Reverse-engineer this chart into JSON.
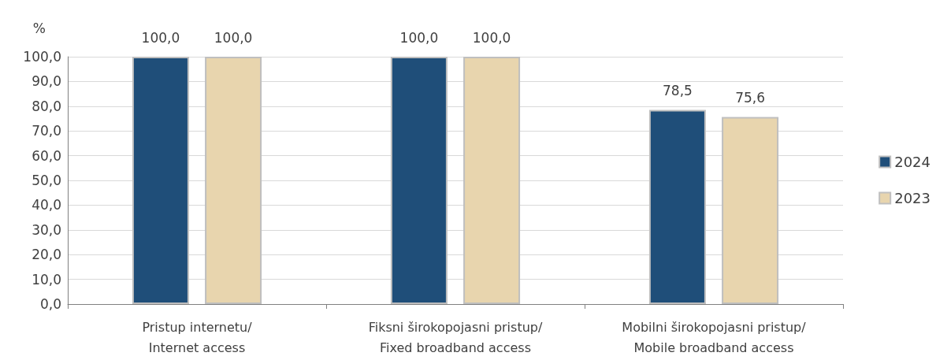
{
  "chart_data": {
    "type": "bar",
    "ylabel": "%",
    "categories": [
      "Pristup internetu/\nInternet access",
      "Fiksni širokopojasni pristup/\nFixed broadband access",
      "Mobilni širokopojasni pristup/\nMobile broadband access"
    ],
    "series": [
      {
        "name": "2024",
        "color": "#1f4e79",
        "values": [
          100.0,
          100.0,
          78.5
        ],
        "value_labels": [
          "100,0",
          "100,0",
          "78,5"
        ]
      },
      {
        "name": "2023",
        "color": "#e8d5ae",
        "values": [
          100.0,
          100.0,
          75.6
        ],
        "value_labels": [
          "100,0",
          "100,0",
          "75,6"
        ]
      }
    ],
    "ylim": [
      0,
      100
    ],
    "yticks": [
      {
        "value": 0,
        "label": "0,0"
      },
      {
        "value": 10,
        "label": "10,0"
      },
      {
        "value": 20,
        "label": "20,0"
      },
      {
        "value": 30,
        "label": "30,0"
      },
      {
        "value": 40,
        "label": "40,0"
      },
      {
        "value": 50,
        "label": "50,0"
      },
      {
        "value": 60,
        "label": "60,0"
      },
      {
        "value": 70,
        "label": "70,0"
      },
      {
        "value": 80,
        "label": "80,0"
      },
      {
        "value": 90,
        "label": "90,0"
      },
      {
        "value": 100,
        "label": "100,0"
      }
    ],
    "grid": "y",
    "legend": "right"
  }
}
